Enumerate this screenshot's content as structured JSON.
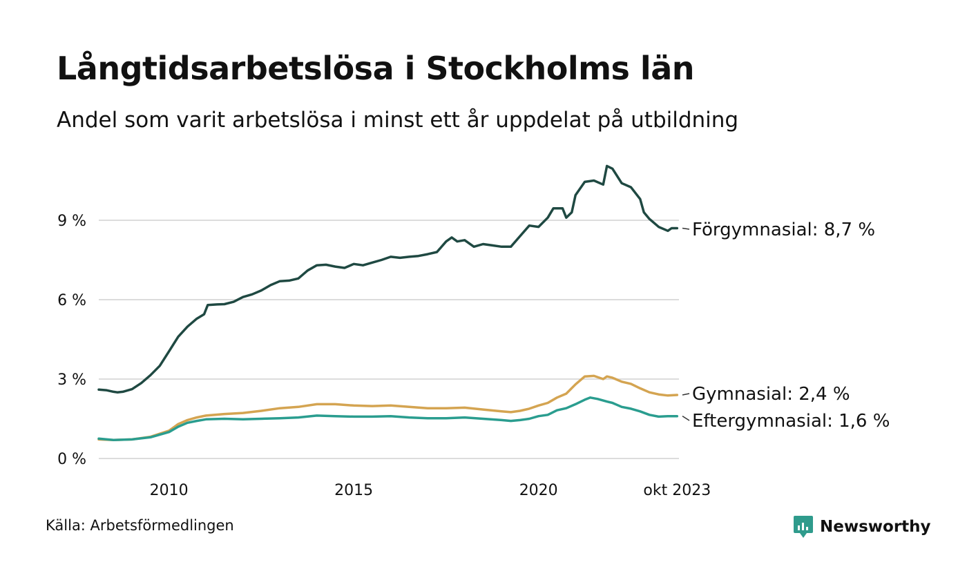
{
  "title": "Långtidsarbetslösa i Stockholms län",
  "subtitle": "Andel som varit arbetslösa i minst ett år uppdelat på utbildning",
  "source": "Källa: Arbetsförmedlingen",
  "brand": "Newsworthy",
  "colors": {
    "brand": "#2f9b8c",
    "grid": "#dcdcdc",
    "text": "#111111"
  },
  "chart_data": {
    "type": "line",
    "title": "Långtidsarbetslösa i Stockholms län",
    "subtitle": "Andel som varit arbetslösa i minst ett år uppdelat på utbildning",
    "xlabel": "",
    "ylabel": "",
    "xlim": [
      2008.1,
      2023.8
    ],
    "ylim": [
      0,
      11.5
    ],
    "x_ticks": [
      {
        "value": 2010,
        "label": "2010"
      },
      {
        "value": 2015,
        "label": "2015"
      },
      {
        "value": 2020,
        "label": "2020"
      },
      {
        "value": 2023.75,
        "label": "okt 2023"
      }
    ],
    "y_ticks": [
      {
        "value": 0,
        "label": "0 %"
      },
      {
        "value": 3,
        "label": "3 %"
      },
      {
        "value": 6,
        "label": "6 %"
      },
      {
        "value": 9,
        "label": "9 %"
      }
    ],
    "grid": true,
    "legend": "direct-labels-right",
    "series": [
      {
        "name": "Förgymnasial",
        "label": "Förgymnasial: 8,7 %",
        "color": "#1f4942",
        "points": [
          [
            2008.1,
            2.6
          ],
          [
            2008.3,
            2.58
          ],
          [
            2008.5,
            2.52
          ],
          [
            2008.6,
            2.5
          ],
          [
            2008.75,
            2.52
          ],
          [
            2009.0,
            2.62
          ],
          [
            2009.25,
            2.85
          ],
          [
            2009.5,
            3.15
          ],
          [
            2009.75,
            3.5
          ],
          [
            2010.0,
            4.05
          ],
          [
            2010.25,
            4.6
          ],
          [
            2010.5,
            4.98
          ],
          [
            2010.75,
            5.28
          ],
          [
            2010.95,
            5.45
          ],
          [
            2011.05,
            5.8
          ],
          [
            2011.3,
            5.82
          ],
          [
            2011.5,
            5.83
          ],
          [
            2011.75,
            5.92
          ],
          [
            2012.0,
            6.1
          ],
          [
            2012.25,
            6.2
          ],
          [
            2012.5,
            6.35
          ],
          [
            2012.75,
            6.55
          ],
          [
            2013.0,
            6.7
          ],
          [
            2013.25,
            6.72
          ],
          [
            2013.5,
            6.8
          ],
          [
            2013.75,
            7.1
          ],
          [
            2014.0,
            7.3
          ],
          [
            2014.25,
            7.32
          ],
          [
            2014.5,
            7.25
          ],
          [
            2014.75,
            7.2
          ],
          [
            2015.0,
            7.35
          ],
          [
            2015.25,
            7.3
          ],
          [
            2015.5,
            7.4
          ],
          [
            2015.75,
            7.5
          ],
          [
            2016.0,
            7.62
          ],
          [
            2016.25,
            7.58
          ],
          [
            2016.5,
            7.62
          ],
          [
            2016.75,
            7.65
          ],
          [
            2017.0,
            7.72
          ],
          [
            2017.25,
            7.8
          ],
          [
            2017.5,
            8.2
          ],
          [
            2017.65,
            8.35
          ],
          [
            2017.8,
            8.2
          ],
          [
            2018.0,
            8.25
          ],
          [
            2018.25,
            8.0
          ],
          [
            2018.5,
            8.1
          ],
          [
            2018.75,
            8.05
          ],
          [
            2019.0,
            8.0
          ],
          [
            2019.25,
            8.0
          ],
          [
            2019.5,
            8.4
          ],
          [
            2019.75,
            8.8
          ],
          [
            2020.0,
            8.75
          ],
          [
            2020.25,
            9.1
          ],
          [
            2020.4,
            9.45
          ],
          [
            2020.65,
            9.45
          ],
          [
            2020.75,
            9.1
          ],
          [
            2020.9,
            9.3
          ],
          [
            2021.0,
            9.95
          ],
          [
            2021.25,
            10.45
          ],
          [
            2021.5,
            10.5
          ],
          [
            2021.75,
            10.35
          ],
          [
            2021.85,
            11.05
          ],
          [
            2022.0,
            10.95
          ],
          [
            2022.25,
            10.4
          ],
          [
            2022.5,
            10.25
          ],
          [
            2022.75,
            9.8
          ],
          [
            2022.85,
            9.3
          ],
          [
            2023.0,
            9.05
          ],
          [
            2023.25,
            8.75
          ],
          [
            2023.5,
            8.6
          ],
          [
            2023.6,
            8.7
          ],
          [
            2023.75,
            8.7
          ]
        ]
      },
      {
        "name": "Gymnasial",
        "label": "Gymnasial: 2,4 %",
        "color": "#d4a451",
        "points": [
          [
            2008.1,
            0.72
          ],
          [
            2008.5,
            0.7
          ],
          [
            2009.0,
            0.72
          ],
          [
            2009.5,
            0.82
          ],
          [
            2010.0,
            1.05
          ],
          [
            2010.25,
            1.3
          ],
          [
            2010.5,
            1.45
          ],
          [
            2010.75,
            1.55
          ],
          [
            2011.0,
            1.62
          ],
          [
            2011.5,
            1.68
          ],
          [
            2012.0,
            1.72
          ],
          [
            2012.5,
            1.8
          ],
          [
            2013.0,
            1.9
          ],
          [
            2013.5,
            1.95
          ],
          [
            2014.0,
            2.05
          ],
          [
            2014.5,
            2.05
          ],
          [
            2015.0,
            2.0
          ],
          [
            2015.5,
            1.98
          ],
          [
            2016.0,
            2.0
          ],
          [
            2016.5,
            1.95
          ],
          [
            2017.0,
            1.9
          ],
          [
            2017.5,
            1.9
          ],
          [
            2018.0,
            1.92
          ],
          [
            2018.5,
            1.85
          ],
          [
            2019.0,
            1.78
          ],
          [
            2019.25,
            1.75
          ],
          [
            2019.5,
            1.8
          ],
          [
            2019.75,
            1.88
          ],
          [
            2020.0,
            2.0
          ],
          [
            2020.25,
            2.1
          ],
          [
            2020.5,
            2.3
          ],
          [
            2020.75,
            2.45
          ],
          [
            2021.0,
            2.8
          ],
          [
            2021.25,
            3.1
          ],
          [
            2021.5,
            3.12
          ],
          [
            2021.75,
            3.0
          ],
          [
            2021.85,
            3.1
          ],
          [
            2022.0,
            3.05
          ],
          [
            2022.25,
            2.9
          ],
          [
            2022.5,
            2.82
          ],
          [
            2022.75,
            2.65
          ],
          [
            2023.0,
            2.5
          ],
          [
            2023.25,
            2.42
          ],
          [
            2023.5,
            2.38
          ],
          [
            2023.75,
            2.4
          ]
        ]
      },
      {
        "name": "Eftergymnasial",
        "label": "Eftergymnasial: 1,6 %",
        "color": "#2a9d8f",
        "points": [
          [
            2008.1,
            0.75
          ],
          [
            2008.5,
            0.7
          ],
          [
            2009.0,
            0.72
          ],
          [
            2009.5,
            0.8
          ],
          [
            2010.0,
            1.0
          ],
          [
            2010.25,
            1.2
          ],
          [
            2010.5,
            1.35
          ],
          [
            2010.75,
            1.42
          ],
          [
            2011.0,
            1.48
          ],
          [
            2011.5,
            1.5
          ],
          [
            2012.0,
            1.48
          ],
          [
            2012.5,
            1.5
          ],
          [
            2013.0,
            1.52
          ],
          [
            2013.5,
            1.55
          ],
          [
            2014.0,
            1.62
          ],
          [
            2014.5,
            1.6
          ],
          [
            2015.0,
            1.58
          ],
          [
            2015.5,
            1.58
          ],
          [
            2016.0,
            1.6
          ],
          [
            2016.5,
            1.55
          ],
          [
            2017.0,
            1.52
          ],
          [
            2017.5,
            1.52
          ],
          [
            2018.0,
            1.55
          ],
          [
            2018.5,
            1.5
          ],
          [
            2019.0,
            1.45
          ],
          [
            2019.25,
            1.42
          ],
          [
            2019.5,
            1.45
          ],
          [
            2019.75,
            1.5
          ],
          [
            2020.0,
            1.6
          ],
          [
            2020.25,
            1.65
          ],
          [
            2020.5,
            1.82
          ],
          [
            2020.75,
            1.9
          ],
          [
            2021.0,
            2.05
          ],
          [
            2021.25,
            2.22
          ],
          [
            2021.4,
            2.3
          ],
          [
            2021.6,
            2.25
          ],
          [
            2021.85,
            2.15
          ],
          [
            2022.0,
            2.1
          ],
          [
            2022.25,
            1.95
          ],
          [
            2022.5,
            1.88
          ],
          [
            2022.75,
            1.78
          ],
          [
            2023.0,
            1.65
          ],
          [
            2023.25,
            1.58
          ],
          [
            2023.5,
            1.6
          ],
          [
            2023.75,
            1.6
          ]
        ]
      }
    ]
  }
}
